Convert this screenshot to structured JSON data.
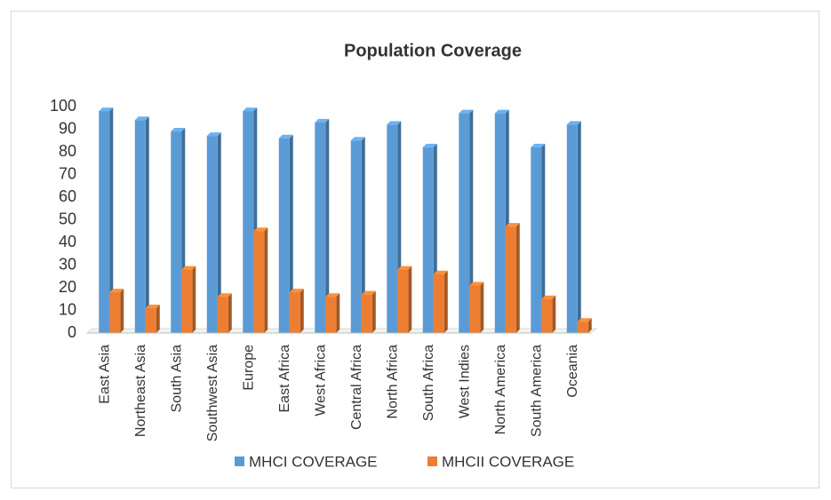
{
  "chart_data": {
    "type": "bar",
    "title": "Population Coverage",
    "categories": [
      "East Asia",
      "Northeast Asia",
      "South Asia",
      "Southwest Asia",
      "Europe",
      "East Africa",
      "West Africa",
      "Central Africa",
      "North Africa",
      "South Africa",
      "West Indies",
      "North America",
      "South America",
      "Oceania"
    ],
    "series": [
      {
        "name": "MHCI COVERAGE",
        "color": "#5b9bd5",
        "values": [
          98,
          94,
          89,
          87,
          98,
          86,
          93,
          85,
          92,
          82,
          97,
          97,
          82,
          92
        ]
      },
      {
        "name": "MHCII COVERAGE",
        "color": "#ed7d31",
        "values": [
          18,
          11,
          28,
          16,
          45,
          18,
          16,
          17,
          28,
          26,
          21,
          47,
          15,
          5
        ]
      }
    ],
    "ylim": [
      0,
      100
    ],
    "yticks": [
      0,
      10,
      20,
      30,
      40,
      50,
      60,
      70,
      80,
      90,
      100
    ],
    "grid": false,
    "legend": "bottom"
  }
}
